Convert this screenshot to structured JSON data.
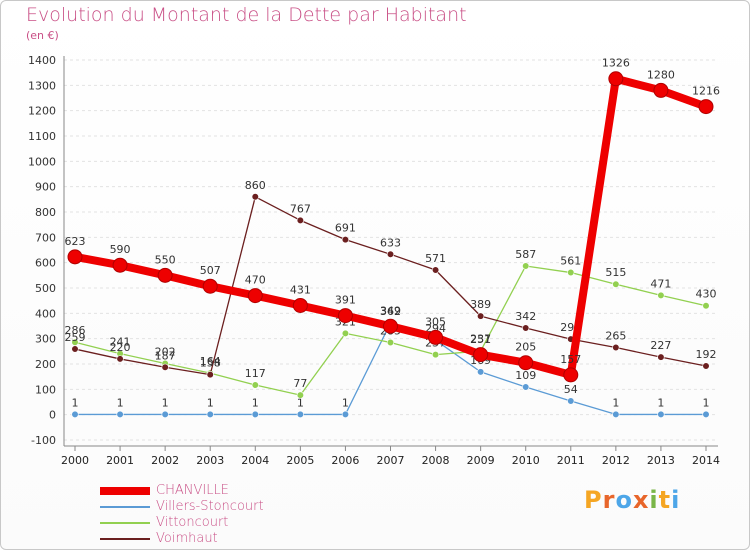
{
  "chart_data": {
    "type": "line",
    "title": "Evolution du Montant de la Dette par Habitant",
    "subtitle": "(en €)",
    "xlabel": "",
    "ylabel": "",
    "ylim": [
      -100,
      1400
    ],
    "yticks": [
      -100,
      0,
      100,
      200,
      300,
      400,
      500,
      600,
      700,
      800,
      900,
      1000,
      1100,
      1200,
      1300,
      1400
    ],
    "categories": [
      "2000",
      "2001",
      "2002",
      "2003",
      "2004",
      "2005",
      "2006",
      "2007",
      "2008",
      "2009",
      "2010",
      "2011",
      "2012",
      "2013",
      "2014"
    ],
    "legend_position": "bottom-left",
    "series": [
      {
        "name": "CHANVILLE",
        "color": "#ee0000",
        "values": [
          623,
          590,
          550,
          507,
          470,
          431,
          391,
          349,
          305,
          237,
          205,
          157,
          1326,
          1280,
          1216
        ]
      },
      {
        "name": "Villers-Stoncourt",
        "color": "#5b9bd5",
        "values": [
          1,
          1,
          1,
          1,
          1,
          1,
          1,
          362,
          294,
          169,
          109,
          54,
          1,
          1,
          1
        ]
      },
      {
        "name": "Vittoncourt",
        "color": "#92d050",
        "values": [
          286,
          241,
          202,
          164,
          117,
          77,
          321,
          285,
          237,
          251,
          587,
          561,
          515,
          471,
          430
        ]
      },
      {
        "name": "Voimhaut",
        "color": "#6b1f1f",
        "values": [
          259,
          220,
          187,
          158,
          860,
          767,
          691,
          633,
          571,
          389,
          342,
          298,
          265,
          227,
          192
        ]
      }
    ]
  },
  "logo": {
    "letters": [
      "P",
      "r",
      "o",
      "x",
      "i",
      "t",
      "i"
    ],
    "colors": [
      "#f5a623",
      "#e8662b",
      "#4da6e8",
      "#e8662b",
      "#7ab648",
      "#f5a623",
      "#4da6e8"
    ]
  }
}
